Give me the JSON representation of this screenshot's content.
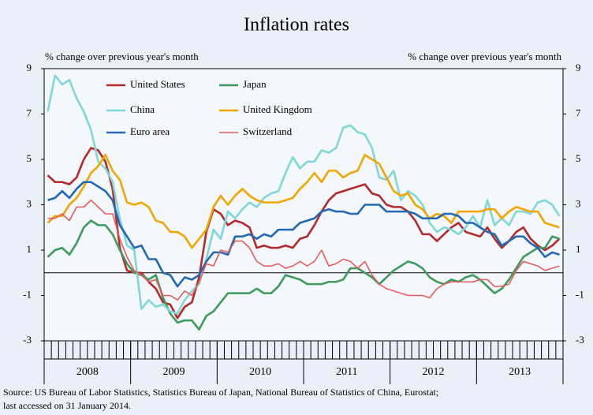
{
  "chart_data": {
    "type": "line",
    "title": "Inflation rates",
    "y_label": "% change over previous year's month",
    "y2_label": "% change over previous year's month",
    "categories": [
      null,
      null,
      null,
      null,
      null,
      null,
      "2008",
      null,
      null,
      null,
      null,
      null,
      null,
      null,
      null,
      null,
      null,
      null,
      "2009",
      null,
      null,
      null,
      null,
      null,
      null,
      null,
      null,
      null,
      null,
      null,
      "2010",
      null,
      null,
      null,
      null,
      null,
      null,
      null,
      null,
      null,
      null,
      null,
      "2011",
      null,
      null,
      null,
      null,
      null,
      null,
      null,
      null,
      null,
      null,
      null,
      "2012",
      null,
      null,
      null,
      null,
      null,
      null,
      null,
      null,
      null,
      null,
      null,
      "2013",
      null,
      null,
      null,
      null,
      null
    ],
    "ylim": [
      -3,
      9
    ],
    "yticks": [
      -3,
      -1,
      1,
      3,
      5,
      7,
      9
    ],
    "y2lim": [
      -3,
      9
    ],
    "y2ticks": [
      -3,
      -1,
      1,
      3,
      5,
      7,
      9
    ],
    "series": [
      {
        "name": "United States",
        "color": "#b52a2a",
        "values": [
          4.3,
          4.0,
          4.0,
          3.9,
          4.2,
          5.0,
          5.5,
          5.4,
          4.9,
          3.7,
          1.1,
          0.1,
          0.0,
          0.0,
          -0.4,
          -0.7,
          -1.3,
          -1.4,
          -2.0,
          -1.5,
          -1.3,
          -0.2,
          1.8,
          2.8,
          2.6,
          2.1,
          2.3,
          2.2,
          2.0,
          1.1,
          1.2,
          1.1,
          1.1,
          1.2,
          1.1,
          1.5,
          1.6,
          2.1,
          2.7,
          3.2,
          3.5,
          3.6,
          3.7,
          3.8,
          3.9,
          3.5,
          3.4,
          3.0,
          2.9,
          2.9,
          2.7,
          2.3,
          1.7,
          1.7,
          1.4,
          1.7,
          2.0,
          2.2,
          1.8,
          1.7,
          1.6,
          2.0,
          1.5,
          1.1,
          1.4,
          1.8,
          2.0,
          1.5,
          1.2,
          1.0,
          1.2,
          1.5
        ]
      },
      {
        "name": "Japan",
        "color": "#3d9c5e",
        "values": [
          0.7,
          1.0,
          1.1,
          0.8,
          1.3,
          2.0,
          2.3,
          2.1,
          2.1,
          1.7,
          1.0,
          0.4,
          0.0,
          -0.1,
          -0.3,
          -0.1,
          -1.1,
          -1.8,
          -2.2,
          -2.1,
          -2.1,
          -2.5,
          -1.9,
          -1.7,
          -1.3,
          -0.9,
          -0.9,
          -0.9,
          -0.9,
          -0.7,
          -0.9,
          -0.9,
          -0.6,
          -0.1,
          -0.2,
          -0.3,
          -0.5,
          -0.5,
          -0.5,
          -0.4,
          -0.4,
          -0.3,
          0.2,
          0.2,
          0.0,
          -0.2,
          -0.5,
          -0.2,
          0.1,
          0.3,
          0.5,
          0.4,
          0.2,
          -0.2,
          -0.4,
          -0.5,
          -0.3,
          -0.4,
          -0.2,
          -0.1,
          -0.3,
          -0.6,
          -0.9,
          -0.7,
          -0.3,
          0.2,
          0.7,
          0.9,
          1.1,
          1.1,
          1.6,
          1.5
        ]
      },
      {
        "name": "China",
        "color": "#7fd8d8",
        "values": [
          7.1,
          8.7,
          8.3,
          8.5,
          7.7,
          7.1,
          6.3,
          4.9,
          4.6,
          4.0,
          2.4,
          1.2,
          1.0,
          -1.6,
          -1.2,
          -1.5,
          -1.4,
          -1.7,
          -1.8,
          -1.2,
          -0.8,
          -0.5,
          0.6,
          1.9,
          1.5,
          2.7,
          2.4,
          2.8,
          3.1,
          2.9,
          3.3,
          3.5,
          3.6,
          4.4,
          5.1,
          4.6,
          4.9,
          4.9,
          5.4,
          5.3,
          5.5,
          6.4,
          6.5,
          6.2,
          6.1,
          5.5,
          4.2,
          4.1,
          4.5,
          3.2,
          3.6,
          3.4,
          3.0,
          2.2,
          1.8,
          2.0,
          1.9,
          1.7,
          2.0,
          2.5,
          2.0,
          3.2,
          2.1,
          2.4,
          2.1,
          2.7,
          2.7,
          2.6,
          3.1,
          3.2,
          3.0,
          2.5
        ]
      },
      {
        "name": "United Kingdom",
        "color": "#f3a600",
        "values": [
          2.2,
          2.5,
          2.5,
          3.0,
          3.3,
          3.8,
          4.4,
          4.7,
          5.2,
          4.5,
          4.1,
          3.1,
          3.0,
          3.1,
          2.9,
          2.3,
          2.2,
          1.8,
          1.8,
          1.6,
          1.1,
          1.5,
          1.9,
          2.9,
          3.4,
          3.0,
          3.4,
          3.7,
          3.4,
          3.2,
          3.1,
          3.1,
          3.1,
          3.2,
          3.3,
          3.7,
          4.0,
          4.4,
          4.0,
          4.5,
          4.5,
          4.2,
          4.4,
          4.5,
          5.2,
          5.0,
          4.8,
          4.2,
          3.6,
          3.4,
          3.5,
          3.0,
          2.8,
          2.4,
          2.6,
          2.5,
          2.2,
          2.7,
          2.7,
          2.7,
          2.7,
          2.8,
          2.8,
          2.4,
          2.7,
          2.9,
          2.8,
          2.7,
          2.7,
          2.2,
          2.1,
          2.0
        ]
      },
      {
        "name": "Euro area",
        "color": "#2169b4",
        "values": [
          3.2,
          3.3,
          3.6,
          3.3,
          3.7,
          4.0,
          4.0,
          3.8,
          3.6,
          3.2,
          2.1,
          1.6,
          1.1,
          1.2,
          0.6,
          0.6,
          0.0,
          -0.1,
          -0.6,
          -0.2,
          -0.3,
          -0.1,
          0.5,
          0.9,
          0.9,
          0.8,
          1.6,
          1.6,
          1.7,
          1.5,
          1.7,
          1.6,
          1.9,
          1.9,
          1.9,
          2.2,
          2.3,
          2.4,
          2.7,
          2.8,
          2.7,
          2.7,
          2.6,
          2.6,
          3.0,
          3.0,
          3.0,
          2.7,
          2.7,
          2.7,
          2.7,
          2.6,
          2.4,
          2.4,
          2.4,
          2.6,
          2.6,
          2.5,
          2.2,
          2.2,
          2.0,
          1.8,
          1.7,
          1.2,
          1.4,
          1.6,
          1.6,
          1.3,
          1.1,
          0.7,
          0.9,
          0.8
        ]
      },
      {
        "name": "Switzerland",
        "color": "#e85a5c",
        "values": [
          2.4,
          2.4,
          2.6,
          2.3,
          2.9,
          2.9,
          3.2,
          2.9,
          2.6,
          2.6,
          1.5,
          0.7,
          0.1,
          -0.1,
          -0.4,
          -0.3,
          -1.0,
          -1.0,
          -1.2,
          -0.8,
          -1.0,
          -0.4,
          0.4,
          0.3,
          1.0,
          0.9,
          1.4,
          1.4,
          1.1,
          0.5,
          0.3,
          0.3,
          0.4,
          0.2,
          0.3,
          0.5,
          0.3,
          0.5,
          1.0,
          0.3,
          0.4,
          0.6,
          0.5,
          0.2,
          0.5,
          -0.1,
          -0.5,
          -0.7,
          -0.8,
          -0.9,
          -1.0,
          -1.0,
          -1.0,
          -1.1,
          -0.7,
          -0.5,
          -0.4,
          -0.4,
          -0.4,
          -0.4,
          -0.3,
          -0.3,
          -0.6,
          -0.6,
          -0.5,
          0.1,
          0.5,
          0.4,
          0.3,
          0.1,
          0.2,
          0.3
        ]
      }
    ],
    "source": [
      "Source: US Bureau of Labor Statistics, Statistics Bureau of Japan, National Bureau of Statistics of China, Eurostat;",
      "last accessed on 31 January 2014."
    ]
  }
}
